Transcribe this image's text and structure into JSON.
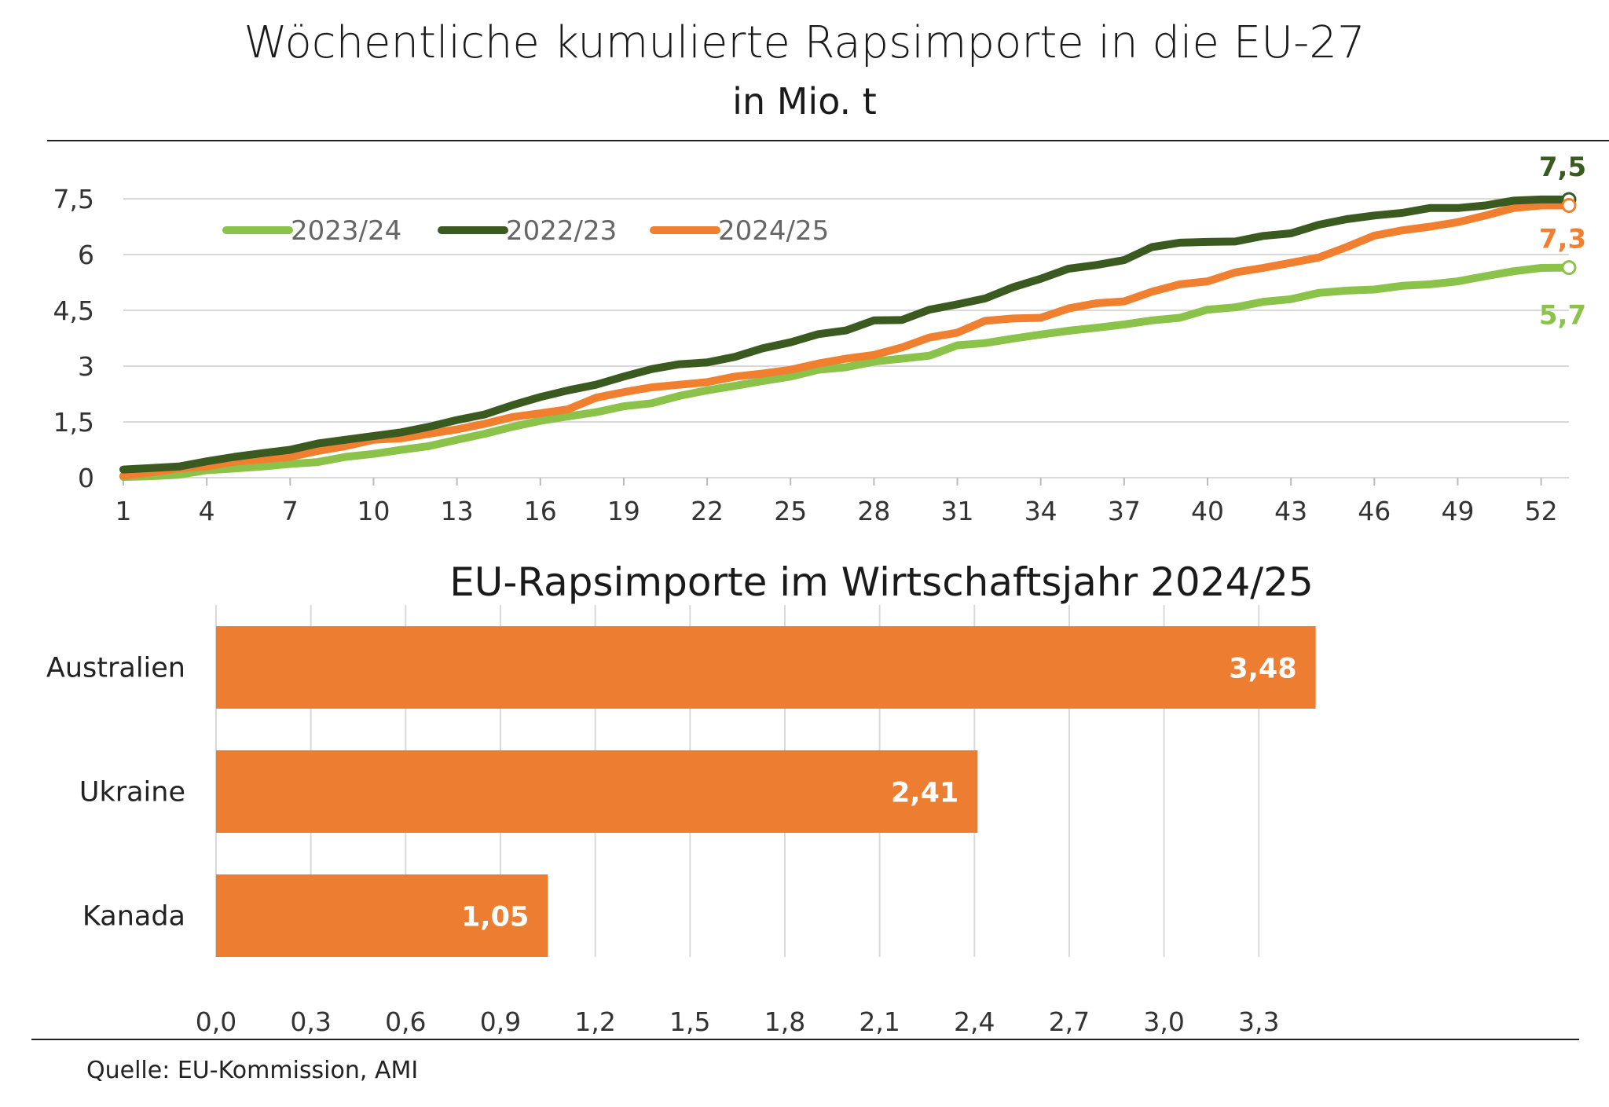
{
  "line_chart": {
    "title": "Wöchentliche kumulierte Rapsimporte in die EU-27",
    "subtitle": "in Mio. t",
    "chart_data": {
      "type": "line",
      "ylim": [
        0,
        7.5
      ],
      "yticks": [
        "0",
        "1,5",
        "3",
        "4,5",
        "6",
        "7,5"
      ],
      "ytick_values": [
        0,
        1.5,
        3,
        4.5,
        6,
        7.5
      ],
      "xlim": [
        1,
        53
      ],
      "xticks": [
        "1",
        "4",
        "7",
        "10",
        "13",
        "16",
        "19",
        "22",
        "25",
        "28",
        "31",
        "34",
        "37",
        "40",
        "43",
        "46",
        "49",
        "52"
      ],
      "xtick_values": [
        1,
        4,
        7,
        10,
        13,
        16,
        19,
        22,
        25,
        28,
        31,
        34,
        37,
        40,
        43,
        46,
        49,
        52
      ],
      "legend_position": "top-left",
      "series": [
        {
          "name": "2023/24",
          "color": "#8bc34a",
          "end_label": "5,7",
          "values": [
            0.02,
            0.04,
            0.08,
            0.2,
            0.25,
            0.3,
            0.37,
            0.42,
            0.56,
            0.64,
            0.75,
            0.85,
            1.02,
            1.18,
            1.37,
            1.53,
            1.65,
            1.76,
            1.92,
            2.0,
            2.2,
            2.35,
            2.47,
            2.6,
            2.72,
            2.9,
            2.97,
            3.12,
            3.2,
            3.28,
            3.56,
            3.62,
            3.74,
            3.85,
            3.95,
            4.03,
            4.12,
            4.23,
            4.3,
            4.52,
            4.58,
            4.73,
            4.8,
            4.97,
            5.03,
            5.06,
            5.16,
            5.2,
            5.28,
            5.42,
            5.55,
            5.64,
            5.65
          ]
        },
        {
          "name": "2022/23",
          "color": "#3a5a1f",
          "end_label": "7,5",
          "values": [
            0.22,
            0.26,
            0.3,
            0.44,
            0.56,
            0.66,
            0.75,
            0.92,
            1.02,
            1.12,
            1.22,
            1.37,
            1.55,
            1.7,
            1.95,
            2.17,
            2.35,
            2.5,
            2.72,
            2.92,
            3.05,
            3.1,
            3.25,
            3.48,
            3.64,
            3.86,
            3.96,
            4.23,
            4.24,
            4.52,
            4.66,
            4.82,
            5.12,
            5.35,
            5.62,
            5.72,
            5.85,
            6.2,
            6.32,
            6.34,
            6.35,
            6.5,
            6.57,
            6.8,
            6.95,
            7.05,
            7.12,
            7.25,
            7.25,
            7.32,
            7.45,
            7.48,
            7.48
          ]
        },
        {
          "name": "2024/25",
          "color": "#f08030",
          "end_label": "7,3",
          "values": [
            0.05,
            0.14,
            0.25,
            0.3,
            0.43,
            0.49,
            0.56,
            0.72,
            0.85,
            1.02,
            1.06,
            1.18,
            1.3,
            1.45,
            1.63,
            1.73,
            1.84,
            2.15,
            2.3,
            2.43,
            2.5,
            2.57,
            2.72,
            2.8,
            2.9,
            3.07,
            3.2,
            3.3,
            3.5,
            3.77,
            3.9,
            4.22,
            4.28,
            4.3,
            4.55,
            4.69,
            4.74,
            5.0,
            5.2,
            5.28,
            5.52,
            5.64,
            5.78,
            5.92,
            6.2,
            6.51,
            6.65,
            6.75,
            6.87,
            7.05,
            7.25,
            7.32,
            7.32
          ]
        }
      ]
    }
  },
  "bar_chart": {
    "title": "EU-Rapsimporte im Wirtschaftsjahr 2024/25",
    "chart_data": {
      "type": "bar",
      "orientation": "horizontal",
      "categories": [
        "Australien",
        "Ukraine",
        "Kanada"
      ],
      "values": [
        3.48,
        2.41,
        1.05
      ],
      "value_labels": [
        "3,48",
        "2,41",
        "1,05"
      ],
      "xlim": [
        0,
        3.6
      ],
      "xticks": [
        "0,0",
        "0,3",
        "0,6",
        "0,9",
        "1,2",
        "1,5",
        "1,8",
        "2,1",
        "2,4",
        "2,7",
        "3,0",
        "3,3"
      ],
      "xtick_values": [
        0,
        0.3,
        0.6,
        0.9,
        1.2,
        1.5,
        1.8,
        2.1,
        2.4,
        2.7,
        3.0,
        3.3
      ],
      "bar_color": "#ed7d31"
    }
  },
  "source": "Quelle: EU-Kommission, AMI"
}
